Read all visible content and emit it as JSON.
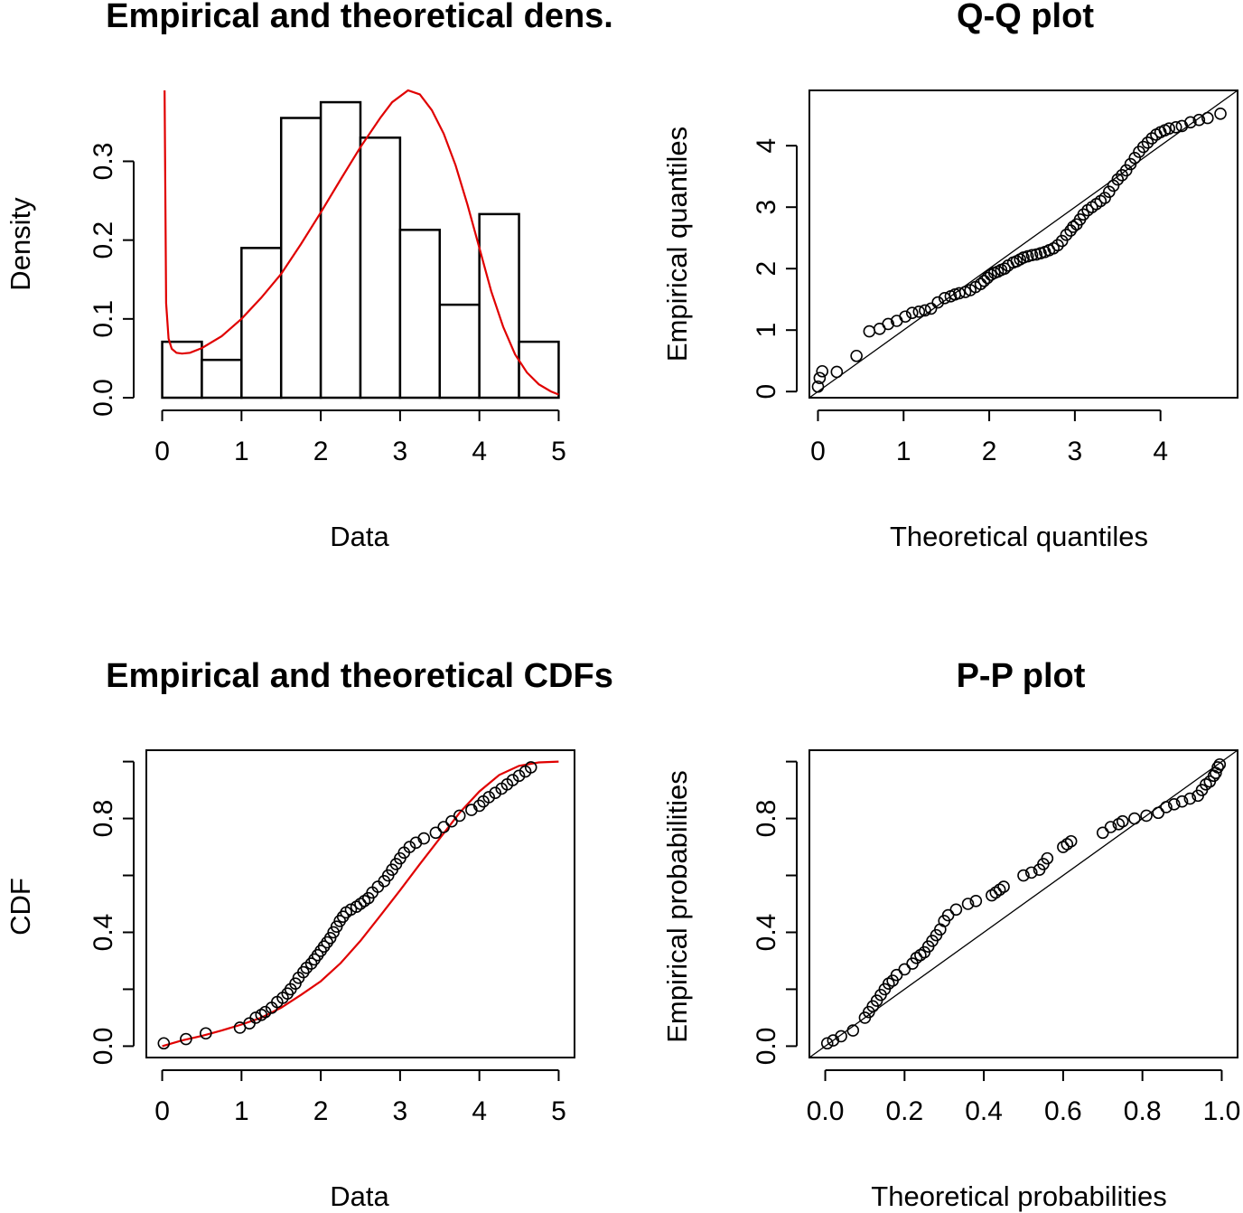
{
  "chart_data": [
    {
      "type": "bar",
      "title": "Empirical and theoretical dens.",
      "xlabel": "Data",
      "ylabel": "Density",
      "xlim": [
        0,
        5
      ],
      "ylim": [
        0,
        0.39
      ],
      "x_ticks": [
        "0",
        "1",
        "2",
        "3",
        "4",
        "5"
      ],
      "y_ticks": [
        "0.0",
        "0.1",
        "0.2",
        "0.3"
      ],
      "bins": [
        [
          0,
          0.5
        ],
        [
          0.5,
          1
        ],
        [
          1,
          1.5
        ],
        [
          1.5,
          2
        ],
        [
          2,
          2.5
        ],
        [
          2.5,
          3
        ],
        [
          3,
          3.5
        ],
        [
          3.5,
          4
        ],
        [
          4,
          4.5
        ],
        [
          4.5,
          5
        ]
      ],
      "values": [
        0.071,
        0.048,
        0.19,
        0.355,
        0.375,
        0.33,
        0.213,
        0.118,
        0.233,
        0.071
      ],
      "theoretical_density": {
        "color": "#e00000",
        "x": [
          0.03,
          0.05,
          0.08,
          0.12,
          0.18,
          0.25,
          0.35,
          0.5,
          0.75,
          1,
          1.25,
          1.5,
          1.75,
          2,
          2.25,
          2.5,
          2.75,
          2.9,
          3.1,
          3.25,
          3.4,
          3.55,
          3.7,
          3.85,
          4,
          4.15,
          4.3,
          4.45,
          4.6,
          4.75,
          4.9,
          5.0
        ],
        "y": [
          0.39,
          0.12,
          0.075,
          0.062,
          0.057,
          0.056,
          0.057,
          0.063,
          0.078,
          0.1,
          0.127,
          0.157,
          0.195,
          0.235,
          0.277,
          0.318,
          0.355,
          0.375,
          0.39,
          0.385,
          0.365,
          0.335,
          0.295,
          0.245,
          0.19,
          0.135,
          0.09,
          0.055,
          0.032,
          0.017,
          0.008,
          0.004
        ]
      }
    },
    {
      "type": "scatter",
      "title": "Q-Q plot",
      "xlabel": "Theoretical quantiles",
      "ylabel": "Empirical quantiles",
      "xlim": [
        -0.1,
        4.9
      ],
      "ylim": [
        -0.1,
        4.9
      ],
      "x_ticks": [
        "0",
        "1",
        "2",
        "3",
        "4"
      ],
      "y_ticks": [
        "0",
        "1",
        "2",
        "3",
        "4"
      ],
      "reference_line": "y = x",
      "x": [
        0.0,
        0.02,
        0.05,
        0.22,
        0.45,
        0.6,
        0.72,
        0.82,
        0.92,
        1.02,
        1.1,
        1.18,
        1.25,
        1.32,
        1.4,
        1.48,
        1.55,
        1.6,
        1.65,
        1.72,
        1.78,
        1.84,
        1.9,
        1.94,
        1.98,
        2.02,
        2.06,
        2.1,
        2.14,
        2.18,
        2.22,
        2.28,
        2.32,
        2.36,
        2.4,
        2.45,
        2.5,
        2.55,
        2.6,
        2.65,
        2.7,
        2.75,
        2.8,
        2.85,
        2.9,
        2.95,
        2.98,
        3.02,
        3.06,
        3.1,
        3.15,
        3.2,
        3.25,
        3.3,
        3.35,
        3.4,
        3.45,
        3.5,
        3.55,
        3.6,
        3.65,
        3.7,
        3.75,
        3.8,
        3.85,
        3.9,
        3.95,
        4.0,
        4.05,
        4.1,
        4.18,
        4.25,
        4.35,
        4.45,
        4.55,
        4.7
      ],
      "y": [
        0.08,
        0.22,
        0.33,
        0.32,
        0.58,
        0.98,
        1.02,
        1.1,
        1.15,
        1.22,
        1.28,
        1.3,
        1.32,
        1.35,
        1.45,
        1.52,
        1.55,
        1.58,
        1.6,
        1.62,
        1.65,
        1.7,
        1.75,
        1.8,
        1.85,
        1.9,
        1.93,
        1.95,
        1.98,
        2.0,
        2.05,
        2.1,
        2.12,
        2.15,
        2.18,
        2.2,
        2.22,
        2.23,
        2.25,
        2.27,
        2.3,
        2.33,
        2.38,
        2.45,
        2.55,
        2.62,
        2.68,
        2.72,
        2.8,
        2.88,
        2.95,
        3.0,
        3.05,
        3.1,
        3.15,
        3.25,
        3.35,
        3.45,
        3.52,
        3.6,
        3.7,
        3.8,
        3.9,
        3.98,
        4.05,
        4.12,
        4.18,
        4.22,
        4.25,
        4.28,
        4.3,
        4.32,
        4.38,
        4.42,
        4.45,
        4.52
      ]
    },
    {
      "type": "scatter",
      "title": "Empirical and theoretical CDFs",
      "xlabel": "Data",
      "ylabel": "CDF",
      "xlim": [
        -0.2,
        5.2
      ],
      "ylim": [
        -0.04,
        1.04
      ],
      "x_ticks": [
        "0",
        "1",
        "2",
        "3",
        "4",
        "5"
      ],
      "y_ticks": [
        "0.0",
        "0.4",
        "0.8"
      ],
      "y_tick_marks": [
        0.0,
        0.2,
        0.4,
        0.6,
        0.8,
        1.0
      ],
      "x": [
        0.02,
        0.3,
        0.55,
        0.98,
        1.1,
        1.18,
        1.25,
        1.3,
        1.38,
        1.45,
        1.52,
        1.58,
        1.62,
        1.68,
        1.72,
        1.78,
        1.82,
        1.88,
        1.92,
        1.96,
        2.0,
        2.04,
        2.08,
        2.12,
        2.16,
        2.2,
        2.24,
        2.28,
        2.32,
        2.38,
        2.45,
        2.5,
        2.55,
        2.6,
        2.65,
        2.72,
        2.8,
        2.85,
        2.9,
        2.95,
        3.0,
        3.05,
        3.12,
        3.2,
        3.3,
        3.45,
        3.55,
        3.65,
        3.75,
        3.9,
        4.0,
        4.05,
        4.12,
        4.2,
        4.28,
        4.35,
        4.42,
        4.5,
        4.58,
        4.65
      ],
      "y": [
        0.01,
        0.025,
        0.045,
        0.065,
        0.08,
        0.1,
        0.11,
        0.12,
        0.135,
        0.155,
        0.17,
        0.185,
        0.2,
        0.22,
        0.24,
        0.26,
        0.275,
        0.29,
        0.305,
        0.32,
        0.335,
        0.35,
        0.365,
        0.38,
        0.4,
        0.42,
        0.44,
        0.455,
        0.47,
        0.48,
        0.49,
        0.5,
        0.51,
        0.52,
        0.54,
        0.56,
        0.58,
        0.6,
        0.62,
        0.64,
        0.66,
        0.68,
        0.7,
        0.715,
        0.73,
        0.75,
        0.77,
        0.79,
        0.81,
        0.83,
        0.845,
        0.86,
        0.875,
        0.89,
        0.905,
        0.92,
        0.935,
        0.95,
        0.965,
        0.98
      ],
      "theoretical_cdf": {
        "color": "#e00000",
        "x": [
          0.0,
          0.25,
          0.5,
          0.75,
          1.0,
          1.25,
          1.5,
          1.75,
          2.0,
          2.25,
          2.5,
          2.75,
          3.0,
          3.25,
          3.5,
          3.75,
          4.0,
          4.25,
          4.5,
          4.75,
          5.0
        ],
        "y": [
          0.0,
          0.02,
          0.036,
          0.055,
          0.076,
          0.1,
          0.135,
          0.18,
          0.228,
          0.292,
          0.37,
          0.458,
          0.548,
          0.64,
          0.73,
          0.82,
          0.895,
          0.953,
          0.985,
          0.997,
          1.0
        ]
      }
    },
    {
      "type": "scatter",
      "title": "P-P plot",
      "xlabel": "Theoretical probabilities",
      "ylabel": "Empirical probabilities",
      "xlim": [
        -0.04,
        1.04
      ],
      "ylim": [
        -0.04,
        1.04
      ],
      "x_ticks": [
        "0.0",
        "0.2",
        "0.4",
        "0.6",
        "0.8",
        "1.0"
      ],
      "y_ticks": [
        "0.0",
        "0.4",
        "0.8"
      ],
      "y_tick_marks": [
        0.0,
        0.2,
        0.4,
        0.6,
        0.8,
        1.0
      ],
      "reference_line": "y = x",
      "x": [
        0.005,
        0.02,
        0.04,
        0.07,
        0.1,
        0.11,
        0.12,
        0.13,
        0.14,
        0.15,
        0.16,
        0.17,
        0.18,
        0.2,
        0.22,
        0.23,
        0.24,
        0.25,
        0.26,
        0.27,
        0.28,
        0.29,
        0.3,
        0.31,
        0.33,
        0.36,
        0.38,
        0.42,
        0.43,
        0.44,
        0.45,
        0.5,
        0.52,
        0.54,
        0.55,
        0.56,
        0.6,
        0.61,
        0.62,
        0.7,
        0.72,
        0.74,
        0.75,
        0.78,
        0.81,
        0.84,
        0.86,
        0.88,
        0.9,
        0.92,
        0.94,
        0.95,
        0.96,
        0.97,
        0.98,
        0.985,
        0.99,
        0.995
      ],
      "y": [
        0.01,
        0.02,
        0.035,
        0.055,
        0.1,
        0.12,
        0.14,
        0.16,
        0.18,
        0.2,
        0.22,
        0.23,
        0.25,
        0.27,
        0.29,
        0.31,
        0.32,
        0.33,
        0.35,
        0.37,
        0.39,
        0.41,
        0.44,
        0.46,
        0.48,
        0.5,
        0.51,
        0.53,
        0.54,
        0.55,
        0.56,
        0.6,
        0.61,
        0.62,
        0.64,
        0.66,
        0.7,
        0.71,
        0.72,
        0.75,
        0.77,
        0.78,
        0.79,
        0.8,
        0.81,
        0.82,
        0.84,
        0.85,
        0.86,
        0.87,
        0.88,
        0.9,
        0.92,
        0.93,
        0.95,
        0.96,
        0.98,
        0.99
      ]
    }
  ]
}
